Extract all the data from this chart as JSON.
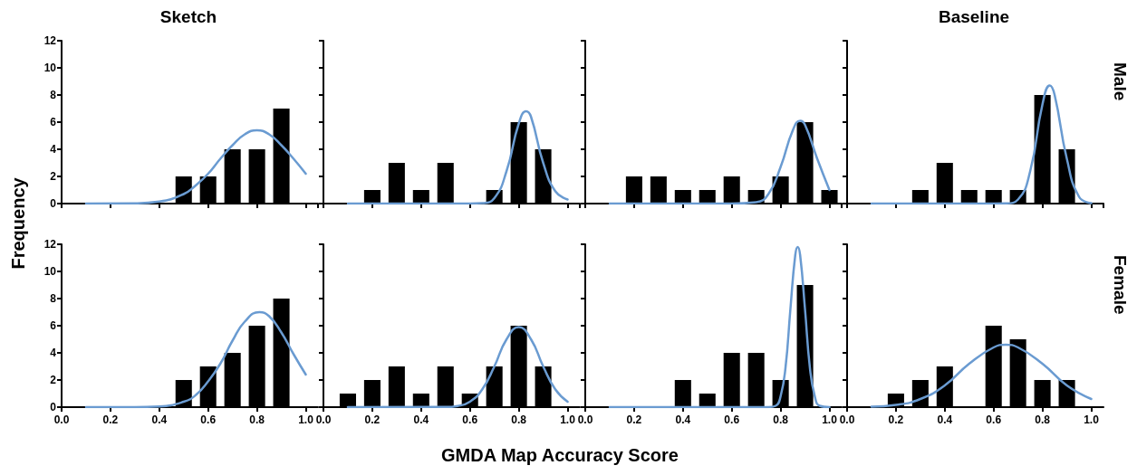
{
  "chart_data": [
    {
      "type": "histogram",
      "title": "Sketch",
      "ylabel": "Frequency",
      "bins": [
        0.05,
        0.15,
        0.25,
        0.35,
        0.45,
        0.55,
        0.65,
        0.75,
        0.85,
        0.95,
        1.05
      ],
      "xlim": [
        0,
        1.05
      ],
      "ylim": [
        0,
        12
      ],
      "xticks": [
        {
          "value": 0,
          "label": null
        },
        {
          "value": 0.2,
          "label": null
        },
        {
          "value": 0.4,
          "label": null
        },
        {
          "value": 0.6,
          "label": null
        },
        {
          "value": 0.8,
          "label": null
        },
        {
          "value": 1,
          "label": null
        }
      ],
      "yticks": [
        0,
        2,
        4,
        6,
        8,
        10,
        12
      ],
      "tick_labels": "y",
      "series": [
        {
          "type": "histogram",
          "color": "#000000",
          "values": [
            0,
            0,
            0,
            0,
            2,
            2,
            4,
            4,
            7,
            0
          ]
        },
        {
          "type": "line",
          "color": "#6a9bd1",
          "x": [
            0.1,
            0.3,
            0.4,
            0.5,
            0.55,
            0.6,
            0.65,
            0.7,
            0.75,
            0.8,
            0.85,
            0.9,
            0.95,
            1.0
          ],
          "values": [
            0,
            0.02,
            0.15,
            0.7,
            1.35,
            2.2,
            3.3,
            4.3,
            5.1,
            5.4,
            5.1,
            4.3,
            3.3,
            2.2
          ]
        }
      ]
    },
    {
      "type": "histogram",
      "bins": [
        0.05,
        0.15,
        0.25,
        0.35,
        0.45,
        0.55,
        0.65,
        0.75,
        0.85,
        0.95,
        1.05
      ],
      "xlim": [
        0,
        1.05
      ],
      "ylim": [
        0,
        12
      ],
      "xticks": [
        {
          "value": 0,
          "label": null
        },
        {
          "value": 0.2,
          "label": null
        },
        {
          "value": 0.4,
          "label": null
        },
        {
          "value": 0.6,
          "label": null
        },
        {
          "value": 0.8,
          "label": null
        },
        {
          "value": 1,
          "label": null
        }
      ],
      "yticks": [
        0,
        2,
        4,
        6,
        8,
        10,
        12
      ],
      "tick_labels": false,
      "series": [
        {
          "type": "histogram",
          "color": "#000000",
          "values": [
            0,
            1,
            3,
            1,
            3,
            0,
            1,
            6,
            4,
            0
          ]
        },
        {
          "type": "line",
          "color": "#6a9bd1",
          "x": [
            0.1,
            0.6,
            0.65,
            0.7,
            0.75,
            0.8,
            0.83,
            0.85,
            0.9,
            0.95,
            1.0
          ],
          "values": [
            0,
            0,
            0.03,
            0.4,
            2.4,
            5.9,
            6.8,
            6.4,
            3.0,
            0.9,
            0.3
          ]
        }
      ]
    },
    {
      "type": "histogram",
      "bins": [
        0.05,
        0.15,
        0.25,
        0.35,
        0.45,
        0.55,
        0.65,
        0.75,
        0.85,
        0.95,
        1.05
      ],
      "xlim": [
        0,
        1.05
      ],
      "ylim": [
        0,
        12
      ],
      "xticks": [
        {
          "value": 0,
          "label": null
        },
        {
          "value": 0.2,
          "label": null
        },
        {
          "value": 0.4,
          "label": null
        },
        {
          "value": 0.6,
          "label": null
        },
        {
          "value": 0.8,
          "label": null
        },
        {
          "value": 1,
          "label": null
        }
      ],
      "yticks": [
        0,
        2,
        4,
        6,
        8,
        10,
        12
      ],
      "tick_labels": false,
      "series": [
        {
          "type": "histogram",
          "color": "#000000",
          "values": [
            0,
            2,
            2,
            1,
            1,
            2,
            1,
            2,
            6,
            1
          ]
        },
        {
          "type": "line",
          "color": "#6a9bd1",
          "x": [
            0.1,
            0.6,
            0.7,
            0.75,
            0.8,
            0.85,
            0.88,
            0.9,
            0.95,
            1.0
          ],
          "values": [
            0,
            0,
            0.1,
            0.7,
            2.7,
            5.4,
            6.1,
            5.8,
            3.3,
            1.0
          ]
        }
      ]
    },
    {
      "type": "histogram",
      "title": "Baseline",
      "y2label": "Male",
      "bins": [
        0.05,
        0.15,
        0.25,
        0.35,
        0.45,
        0.55,
        0.65,
        0.75,
        0.85,
        0.95,
        1.05
      ],
      "xlim": [
        0,
        1.05
      ],
      "ylim": [
        0,
        12
      ],
      "xticks": [
        {
          "value": 0,
          "label": null
        },
        {
          "value": 0.2,
          "label": null
        },
        {
          "value": 0.4,
          "label": null
        },
        {
          "value": 0.6,
          "label": null
        },
        {
          "value": 0.8,
          "label": null
        },
        {
          "value": 1,
          "label": null
        }
      ],
      "yticks": [
        0,
        2,
        4,
        6,
        8,
        10,
        12
      ],
      "tick_labels": false,
      "series": [
        {
          "type": "histogram",
          "color": "#000000",
          "values": [
            0,
            0,
            1,
            3,
            1,
            1,
            1,
            8,
            4,
            0
          ]
        },
        {
          "type": "line",
          "color": "#6a9bd1",
          "x": [
            0.1,
            0.6,
            0.65,
            0.7,
            0.75,
            0.8,
            0.83,
            0.85,
            0.9,
            0.95,
            1.0
          ],
          "values": [
            0,
            0,
            0.01,
            0.3,
            2.4,
            7.3,
            8.7,
            8.0,
            3.3,
            0.5,
            0.03
          ]
        }
      ]
    },
    {
      "type": "histogram",
      "bins": [
        0.05,
        0.15,
        0.25,
        0.35,
        0.45,
        0.55,
        0.65,
        0.75,
        0.85,
        0.95,
        1.05
      ],
      "xlim": [
        0,
        1.05
      ],
      "ylim": [
        0,
        12
      ],
      "xticks": [
        {
          "value": 0,
          "label": "0.0"
        },
        {
          "value": 0.2,
          "label": "0.2"
        },
        {
          "value": 0.4,
          "label": "0.4"
        },
        {
          "value": 0.6,
          "label": "0.6"
        },
        {
          "value": 0.8,
          "label": "0.8"
        },
        {
          "value": 1,
          "label": "1.0"
        }
      ],
      "yticks": [
        0,
        2,
        4,
        6,
        8,
        10,
        12
      ],
      "series": [
        {
          "type": "histogram",
          "color": "#000000",
          "values": [
            0,
            0,
            0,
            0,
            2,
            3,
            4,
            6,
            8,
            0
          ]
        },
        {
          "type": "line",
          "color": "#6a9bd1",
          "x": [
            0.1,
            0.3,
            0.4,
            0.5,
            0.55,
            0.6,
            0.65,
            0.7,
            0.75,
            0.81,
            0.85,
            0.9,
            0.95,
            1.0
          ],
          "values": [
            0,
            0,
            0.05,
            0.4,
            0.9,
            1.9,
            3.2,
            4.9,
            6.3,
            7.0,
            6.7,
            5.5,
            3.9,
            2.4
          ]
        }
      ]
    },
    {
      "type": "histogram",
      "bins": [
        0.05,
        0.15,
        0.25,
        0.35,
        0.45,
        0.55,
        0.65,
        0.75,
        0.85,
        0.95,
        1.05
      ],
      "xlim": [
        0,
        1.05
      ],
      "ylim": [
        0,
        12
      ],
      "xticks": [
        {
          "value": 0,
          "label": "0.0"
        },
        {
          "value": 0.2,
          "label": "0.2"
        },
        {
          "value": 0.4,
          "label": "0.4"
        },
        {
          "value": 0.6,
          "label": "0.6"
        },
        {
          "value": 0.8,
          "label": "0.8"
        },
        {
          "value": 1,
          "label": "1.0"
        }
      ],
      "yticks": [
        0,
        2,
        4,
        6,
        8,
        10,
        12
      ],
      "tick_labels": "x",
      "xlabel": "GMDA Map Accuracy Score",
      "series": [
        {
          "type": "histogram",
          "color": "#000000",
          "values": [
            1,
            2,
            3,
            1,
            3,
            1,
            3,
            6,
            3,
            0
          ]
        },
        {
          "type": "line",
          "color": "#6a9bd1",
          "x": [
            0.1,
            0.5,
            0.55,
            0.6,
            0.65,
            0.7,
            0.75,
            0.8,
            0.85,
            0.9,
            0.95,
            1.0
          ],
          "values": [
            0,
            0.01,
            0.09,
            0.4,
            1.3,
            3.0,
            5.0,
            5.9,
            5.0,
            3.0,
            1.3,
            0.4
          ]
        }
      ]
    },
    {
      "type": "histogram",
      "bins": [
        0.05,
        0.15,
        0.25,
        0.35,
        0.45,
        0.55,
        0.65,
        0.75,
        0.85,
        0.95,
        1.05
      ],
      "xlim": [
        0,
        1.05
      ],
      "ylim": [
        0,
        12
      ],
      "xticks": [
        {
          "value": 0,
          "label": "0.0"
        },
        {
          "value": 0.2,
          "label": "0.2"
        },
        {
          "value": 0.4,
          "label": "0.4"
        },
        {
          "value": 0.6,
          "label": "0.6"
        },
        {
          "value": 0.8,
          "label": "0.8"
        },
        {
          "value": 1,
          "label": "1.0"
        }
      ],
      "yticks": [
        0,
        2,
        4,
        6,
        8,
        10,
        12
      ],
      "tick_labels": "x",
      "series": [
        {
          "type": "histogram",
          "color": "#000000",
          "values": [
            0,
            0,
            0,
            2,
            1,
            4,
            4,
            2,
            9,
            0
          ]
        },
        {
          "type": "line",
          "color": "#6a9bd1",
          "x": [
            0.1,
            0.75,
            0.78,
            0.8,
            0.82,
            0.84,
            0.86,
            0.87,
            0.88,
            0.9,
            0.92,
            0.94,
            0.96,
            1.0
          ],
          "values": [
            0,
            0,
            0.1,
            0.8,
            2.9,
            7.2,
            11.2,
            11.8,
            11.2,
            7.2,
            2.9,
            0.8,
            0.1,
            0
          ]
        }
      ]
    },
    {
      "type": "histogram",
      "y2label": "Female",
      "bins": [
        0.05,
        0.15,
        0.25,
        0.35,
        0.45,
        0.55,
        0.65,
        0.75,
        0.85,
        0.95,
        1.05
      ],
      "xlim": [
        0,
        1.05
      ],
      "ylim": [
        0,
        12
      ],
      "xticks": [
        {
          "value": 0,
          "label": "0.0"
        },
        {
          "value": 0.2,
          "label": "0.2"
        },
        {
          "value": 0.4,
          "label": "0.4"
        },
        {
          "value": 0.6,
          "label": "0.6"
        },
        {
          "value": 0.8,
          "label": "0.8"
        },
        {
          "value": 1,
          "label": "1.0"
        }
      ],
      "yticks": [
        0,
        2,
        4,
        6,
        8,
        10,
        12
      ],
      "tick_labels": "x",
      "series": [
        {
          "type": "histogram",
          "color": "#000000",
          "values": [
            0,
            1,
            2,
            3,
            0,
            6,
            5,
            2,
            2,
            0
          ]
        },
        {
          "type": "line",
          "color": "#6a9bd1",
          "x": [
            0.1,
            0.2,
            0.3,
            0.4,
            0.5,
            0.6,
            0.65,
            0.7,
            0.8,
            0.9,
            1.0
          ],
          "values": [
            0.03,
            0.16,
            0.6,
            1.6,
            3.2,
            4.4,
            4.6,
            4.4,
            3.2,
            1.6,
            0.6
          ]
        }
      ]
    }
  ]
}
